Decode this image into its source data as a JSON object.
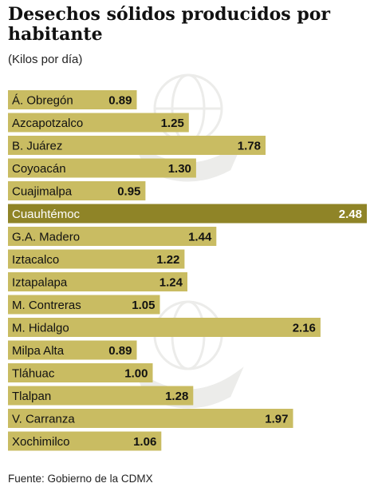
{
  "colors": {
    "bar": "#c9bc62",
    "highlight": "#8f8427",
    "bar_text": "#111111",
    "highlight_text": "#ffffff",
    "watermark": "#ececea"
  },
  "chart_data": {
    "type": "bar",
    "orientation": "horizontal",
    "title": "Desechos sólidos producidos por habitante",
    "subtitle": "(Kilos por día)",
    "categories": [
      "Á. Obregón",
      "Azcapotzalco",
      "B. Juárez",
      "Coyoacán",
      "Cuajimalpa",
      "Cuauhtémoc",
      "G.A. Madero",
      "Iztacalco",
      "Iztapalapa",
      "M. Contreras",
      "M. Hidalgo",
      "Milpa Alta",
      "Tláhuac",
      "Tlalpan",
      "V. Carranza",
      "Xochimilco"
    ],
    "values": [
      0.89,
      1.25,
      1.78,
      1.3,
      0.95,
      2.48,
      1.44,
      1.22,
      1.24,
      1.05,
      2.16,
      0.89,
      1.0,
      1.28,
      1.97,
      1.06
    ],
    "value_labels": [
      "0.89",
      "1.25",
      "1.78",
      "1.30",
      "0.95",
      "2.48",
      "1.44",
      "1.22",
      "1.24",
      "1.05",
      "2.16",
      "0.89",
      "1.00",
      "1.28",
      "1.97",
      "1.06"
    ],
    "highlight_index": 5,
    "xlim": [
      0,
      2.48
    ],
    "grid": false,
    "legend": "none",
    "source": "Fuente: Gobierno de la CDMX"
  }
}
